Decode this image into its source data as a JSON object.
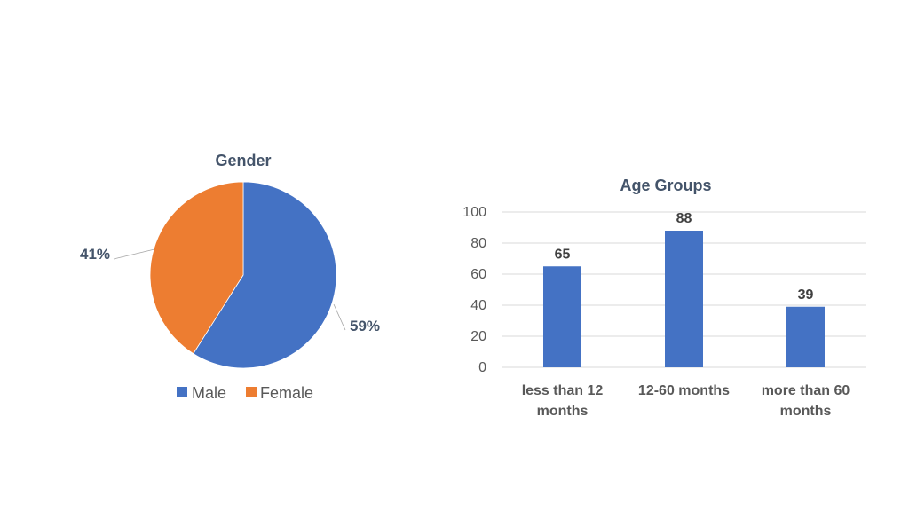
{
  "colors": {
    "male": "#4472c4",
    "female": "#ed7d31",
    "bar": "#4472c4"
  },
  "chart_data": [
    {
      "type": "pie",
      "title": "Gender",
      "categories": [
        "Male",
        "Female"
      ],
      "values": [
        59,
        41
      ],
      "data_labels": [
        "59%",
        "41%"
      ],
      "legend": "bottom"
    },
    {
      "type": "bar",
      "title": "Age Groups",
      "categories": [
        "less than 12 months",
        "12-60 months",
        "more than 60 months"
      ],
      "category_lines": [
        [
          "less than 12",
          "months"
        ],
        [
          "12-60 months"
        ],
        [
          "more than 60",
          "months"
        ]
      ],
      "values": [
        65,
        88,
        39
      ],
      "ylim": [
        0,
        100
      ],
      "yticks": [
        0,
        20,
        40,
        60,
        80,
        100
      ],
      "grid": true,
      "legend": "none"
    }
  ]
}
